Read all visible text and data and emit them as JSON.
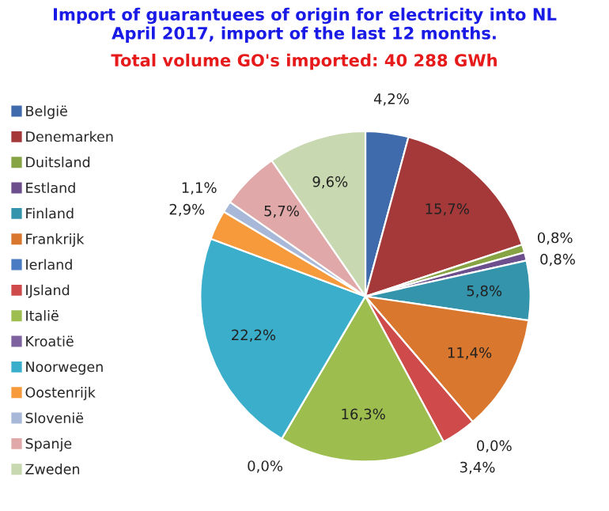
{
  "chart_data": {
    "type": "pie",
    "title": "Import of guarantuees of origin for electricity into NL\nApril 2017, import of the last 12 months.",
    "subtitle": "Total volume GO's imported: 40 288 GWh",
    "categories": [
      "België",
      "Denemarken",
      "Duitsland",
      "Estland",
      "Finland",
      "Frankrijk",
      "Ierland",
      "IJsland",
      "Italië",
      "Kroatië",
      "Noorwegen",
      "Oostenrijk",
      "Slovenië",
      "Spanje",
      "Zweden"
    ],
    "values": [
      4.2,
      15.7,
      0.8,
      0.8,
      5.8,
      11.4,
      0.0,
      3.4,
      16.3,
      0.0,
      22.2,
      2.9,
      1.1,
      5.7,
      9.6
    ],
    "value_labels": [
      "4,2%",
      "15,7%",
      "0,8%",
      "0,8%",
      "5,8%",
      "11,4%",
      "0,0%",
      "3,4%",
      "16,3%",
      "0,0%",
      "22,2%",
      "2,9%",
      "1,1%",
      "5,7%",
      "9,6%"
    ],
    "colors": [
      "#3f6aab",
      "#a5393a",
      "#86a444",
      "#6c4f8c",
      "#3494ac",
      "#d9772e",
      "#4a7cc4",
      "#cf4a4a",
      "#9dbd4f",
      "#7e62a0",
      "#3aaecb",
      "#f79a3b",
      "#a8b8d8",
      "#e0a8a8",
      "#c8d8b0"
    ],
    "legend": "left"
  }
}
